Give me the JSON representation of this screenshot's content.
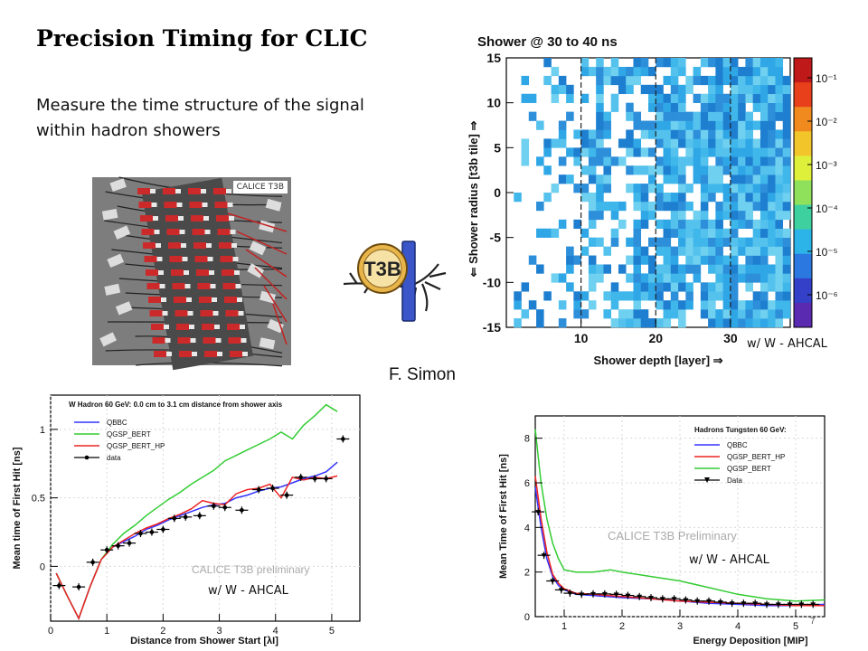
{
  "slide": {
    "title": "Precision Timing for CLIC",
    "subtitle": "Measure the time structure of the signal within hadron showers",
    "photo_caption": "CALICE T3B",
    "logo_text": "T3B",
    "author": "F. Simon",
    "page_number": "7"
  },
  "chart_data": [
    {
      "type": "heatmap",
      "title": "Shower @ 30 to 40 ns",
      "xlabel": "Shower depth [layer] ⇒",
      "ylabel": "⇐ Shower radius [t3b tile] ⇒",
      "xlim": [
        0,
        38
      ],
      "ylim": [
        -15,
        15
      ],
      "xticks": [
        "10",
        "20",
        "30"
      ],
      "yticks": [
        "-15",
        "-10",
        "-5",
        "0",
        "5",
        "10",
        "15"
      ],
      "colorbar_ticks": [
        "10⁻¹",
        "10⁻²",
        "10⁻³",
        "10⁻⁴",
        "10⁻⁵",
        "10⁻⁶"
      ],
      "scale": "log",
      "annotation": "w/ W - AHCAL"
    },
    {
      "type": "line",
      "title": "W Hadron 60 GeV: 0.0 cm to 3.1 cm distance from shower axis",
      "xlabel": "Distance from Shower Start [λI]",
      "ylabel": "Mean time of First Hit [ns]",
      "xlim": [
        0,
        5.5
      ],
      "ylim": [
        -0.4,
        1.25
      ],
      "xticks": [
        "0",
        "1",
        "2",
        "3",
        "4",
        "5"
      ],
      "yticks": [
        "0",
        "0.5",
        "1"
      ],
      "watermark": "CALICE T3B preliminary",
      "annotation": "w/ W - AHCAL",
      "series": [
        {
          "name": "QBBC",
          "color": "#3333ff",
          "x": [
            0.1,
            0.3,
            0.5,
            0.7,
            0.9,
            1.1,
            1.3,
            1.5,
            1.7,
            1.9,
            2.1,
            2.3,
            2.5,
            2.7,
            2.9,
            3.1,
            3.3,
            3.5,
            3.7,
            3.9,
            4.1,
            4.3,
            4.5,
            4.7,
            4.9,
            5.1
          ],
          "y": [
            -0.05,
            -0.22,
            -0.38,
            -0.15,
            0.05,
            0.14,
            0.18,
            0.22,
            0.27,
            0.3,
            0.34,
            0.37,
            0.4,
            0.43,
            0.45,
            0.46,
            0.5,
            0.52,
            0.55,
            0.57,
            0.58,
            0.61,
            0.64,
            0.66,
            0.69,
            0.76
          ]
        },
        {
          "name": "QGSP_BERT",
          "color": "#33cc33",
          "x": [
            0.1,
            0.3,
            0.5,
            0.7,
            0.9,
            1.1,
            1.3,
            1.5,
            1.7,
            1.9,
            2.1,
            2.3,
            2.5,
            2.7,
            2.9,
            3.1,
            3.3,
            3.5,
            3.7,
            3.9,
            4.1,
            4.3,
            4.5,
            4.7,
            4.9,
            5.1
          ],
          "y": [
            -0.05,
            -0.22,
            -0.38,
            -0.15,
            0.05,
            0.16,
            0.24,
            0.3,
            0.37,
            0.43,
            0.49,
            0.54,
            0.6,
            0.65,
            0.7,
            0.77,
            0.81,
            0.85,
            0.89,
            0.93,
            0.98,
            0.93,
            1.03,
            1.1,
            1.18,
            1.13
          ]
        },
        {
          "name": "QGSP_BERT_HP",
          "color": "#ee2222",
          "x": [
            0.1,
            0.3,
            0.5,
            0.7,
            0.9,
            1.1,
            1.3,
            1.5,
            1.7,
            1.9,
            2.1,
            2.3,
            2.5,
            2.7,
            2.9,
            3.1,
            3.3,
            3.5,
            3.7,
            3.9,
            4.1,
            4.3,
            4.5,
            4.7,
            4.9,
            5.1
          ],
          "y": [
            -0.05,
            -0.22,
            -0.38,
            -0.15,
            0.05,
            0.14,
            0.19,
            0.24,
            0.28,
            0.31,
            0.35,
            0.38,
            0.42,
            0.48,
            0.46,
            0.45,
            0.53,
            0.56,
            0.57,
            0.6,
            0.5,
            0.65,
            0.63,
            0.65,
            0.64,
            0.66
          ]
        },
        {
          "name": "data",
          "color": "#000000",
          "x": [
            0.15,
            0.5,
            0.75,
            1.0,
            1.2,
            1.4,
            1.6,
            1.8,
            2.0,
            2.2,
            2.4,
            2.65,
            2.9,
            3.1,
            3.4,
            3.7,
            3.95,
            4.2,
            4.45,
            4.7,
            4.9,
            5.2
          ],
          "y": [
            -0.14,
            -0.15,
            0.03,
            0.12,
            0.15,
            0.17,
            0.24,
            0.25,
            0.27,
            0.35,
            0.36,
            0.37,
            0.44,
            0.43,
            0.41,
            0.56,
            0.57,
            0.52,
            0.65,
            0.64,
            0.64,
            0.93
          ]
        }
      ]
    },
    {
      "type": "line",
      "title": "Hadrons Tungsten 60 GeV:",
      "xlabel": "Energy Deposition [MIP]",
      "ylabel": "Mean Time of First Hit [ns]",
      "xlim": [
        0.5,
        5.5
      ],
      "ylim": [
        0,
        9
      ],
      "xticks": [
        "1",
        "2",
        "3",
        "4",
        "5"
      ],
      "yticks": [
        "0",
        "2",
        "4",
        "6",
        "8"
      ],
      "watermark": "CALICE T3B Preliminary",
      "annotation": "w/ W - AHCAL",
      "series": [
        {
          "name": "QBBC",
          "color": "#3333ff",
          "x": [
            0.5,
            0.6,
            0.7,
            0.8,
            0.9,
            1.0,
            1.2,
            1.5,
            2.0,
            2.5,
            3.0,
            3.5,
            4.0,
            4.5,
            5.0,
            5.5
          ],
          "y": [
            5.8,
            4.0,
            2.6,
            1.8,
            1.4,
            1.2,
            1.0,
            0.95,
            0.85,
            0.8,
            0.7,
            0.6,
            0.55,
            0.5,
            0.5,
            0.55
          ]
        },
        {
          "name": "QGSP_BERT_HP",
          "color": "#ee2222",
          "x": [
            0.5,
            0.6,
            0.7,
            0.8,
            0.9,
            1.0,
            1.2,
            1.5,
            2.0,
            2.5,
            3.0,
            3.5,
            4.0,
            4.5,
            5.0,
            5.5
          ],
          "y": [
            6.3,
            4.4,
            2.9,
            1.9,
            1.5,
            1.25,
            1.05,
            1.0,
            0.9,
            0.8,
            0.7,
            0.65,
            0.6,
            0.55,
            0.5,
            0.5
          ]
        },
        {
          "name": "QGSP_BERT",
          "color": "#33cc33",
          "x": [
            0.5,
            0.6,
            0.7,
            0.8,
            0.9,
            1.0,
            1.2,
            1.5,
            1.8,
            2.0,
            2.5,
            3.0,
            3.5,
            4.0,
            4.5,
            5.0,
            5.5
          ],
          "y": [
            8.4,
            6.0,
            4.4,
            3.3,
            2.6,
            2.1,
            2.0,
            2.0,
            2.1,
            2.0,
            1.8,
            1.6,
            1.3,
            1.0,
            0.8,
            0.7,
            0.75
          ]
        },
        {
          "name": "Data",
          "color": "#000000",
          "x": [
            0.55,
            0.65,
            0.8,
            0.95,
            1.1,
            1.3,
            1.5,
            1.7,
            1.9,
            2.1,
            2.3,
            2.5,
            2.7,
            2.9,
            3.1,
            3.3,
            3.5,
            3.7,
            3.9,
            4.1,
            4.3,
            4.5,
            4.7,
            4.9,
            5.1,
            5.3
          ],
          "y": [
            4.7,
            2.75,
            1.6,
            1.2,
            1.05,
            1.0,
            1.02,
            1.02,
            1.0,
            0.95,
            0.9,
            0.85,
            0.8,
            0.8,
            0.75,
            0.7,
            0.7,
            0.65,
            0.6,
            0.6,
            0.6,
            0.55,
            0.55,
            0.55,
            0.55,
            0.55
          ]
        }
      ]
    }
  ]
}
